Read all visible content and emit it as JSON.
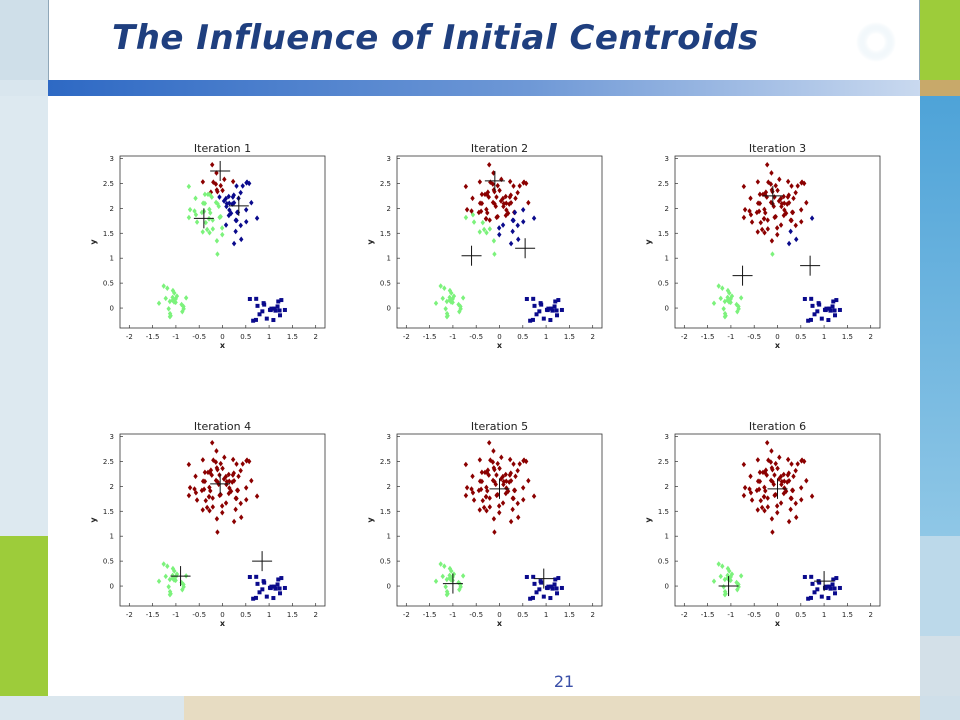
{
  "slide": {
    "title": "The Influence of Initial Centroids",
    "page_number": "21"
  },
  "colors": {
    "cluster_red": "#8b0000",
    "cluster_blue": "#0a0a8c",
    "cluster_green": "#7cf27c",
    "title": "#1f3f7f"
  },
  "chart_data": [
    {
      "type": "scatter",
      "title": "Iteration 1",
      "xlabel": "x",
      "ylabel": "y",
      "xlim": [
        -2.2,
        2.2
      ],
      "ylim": [
        -0.4,
        3.05
      ],
      "xticks": [
        "-2",
        "-1.5",
        "-1",
        "-0.5",
        "0",
        "0.5",
        "1",
        "1.5",
        "2"
      ],
      "yticks": [
        "0",
        "0.5",
        "1",
        "1.5",
        "2",
        "2.5",
        "3"
      ],
      "centroids": [
        [
          -0.05,
          2.75
        ],
        [
          0.35,
          2.05
        ],
        [
          -0.4,
          1.8
        ]
      ]
    },
    {
      "type": "scatter",
      "title": "Iteration 2",
      "xlabel": "x",
      "ylabel": "y",
      "xlim": [
        -2.2,
        2.2
      ],
      "ylim": [
        -0.4,
        3.05
      ],
      "xticks": [
        "-2",
        "-1.5",
        "-1",
        "-0.5",
        "0",
        "0.5",
        "1",
        "1.5",
        "2"
      ],
      "yticks": [
        "0",
        "0.5",
        "1",
        "1.5",
        "2",
        "2.5",
        "3"
      ],
      "centroids": [
        [
          -0.1,
          2.55
        ],
        [
          0.55,
          1.2
        ],
        [
          -0.6,
          1.05
        ]
      ]
    },
    {
      "type": "scatter",
      "title": "Iteration 3",
      "xlabel": "x",
      "ylabel": "y",
      "xlim": [
        -2.2,
        2.2
      ],
      "ylim": [
        -0.4,
        3.05
      ],
      "xticks": [
        "-2",
        "-1.5",
        "-1",
        "-0.5",
        "0",
        "0.5",
        "1",
        "1.5",
        "2"
      ],
      "yticks": [
        "0",
        "0.5",
        "1",
        "1.5",
        "2",
        "2.5",
        "3"
      ],
      "centroids": [
        [
          -0.1,
          2.25
        ],
        [
          0.7,
          0.85
        ],
        [
          -0.75,
          0.65
        ]
      ]
    },
    {
      "type": "scatter",
      "title": "Iteration 4",
      "xlabel": "x",
      "ylabel": "y",
      "xlim": [
        -2.2,
        2.2
      ],
      "ylim": [
        -0.4,
        3.05
      ],
      "xticks": [
        "-2",
        "-1.5",
        "-1",
        "-0.5",
        "0",
        "0.5",
        "1",
        "1.5",
        "2"
      ],
      "yticks": [
        "0",
        "0.5",
        "1",
        "1.5",
        "2",
        "2.5",
        "3"
      ],
      "centroids": [
        [
          -0.05,
          2.05
        ],
        [
          0.85,
          0.5
        ],
        [
          -0.9,
          0.2
        ]
      ]
    },
    {
      "type": "scatter",
      "title": "Iteration 5",
      "xlabel": "x",
      "ylabel": "y",
      "xlim": [
        -2.2,
        2.2
      ],
      "ylim": [
        -0.4,
        3.05
      ],
      "xticks": [
        "-2",
        "-1.5",
        "-1",
        "-0.5",
        "0",
        "0.5",
        "1",
        "1.5",
        "2"
      ],
      "yticks": [
        "0",
        "0.5",
        "1",
        "1.5",
        "2",
        "2.5",
        "3"
      ],
      "centroids": [
        [
          0.0,
          1.95
        ],
        [
          0.95,
          0.15
        ],
        [
          -1.0,
          0.05
        ]
      ]
    },
    {
      "type": "scatter",
      "title": "Iteration 6",
      "xlabel": "x",
      "ylabel": "y",
      "xlim": [
        -2.2,
        2.2
      ],
      "ylim": [
        -0.4,
        3.05
      ],
      "xticks": [
        "-2",
        "-1.5",
        "-1",
        "-0.5",
        "0",
        "0.5",
        "1",
        "1.5",
        "2"
      ],
      "yticks": [
        "0",
        "0.5",
        "1",
        "1.5",
        "2",
        "2.5",
        "3"
      ],
      "centroids": [
        [
          0.0,
          1.95
        ],
        [
          1.0,
          0.1
        ],
        [
          -1.05,
          0.0
        ]
      ]
    }
  ]
}
